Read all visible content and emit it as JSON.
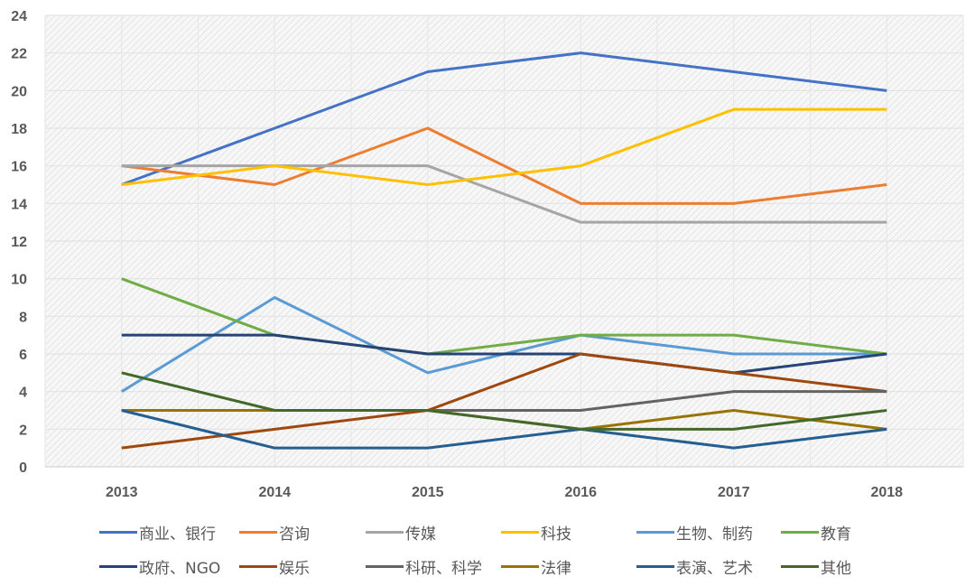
{
  "chart_data": {
    "type": "line",
    "title": "",
    "xlabel": "",
    "ylabel": "",
    "categories": [
      "2013",
      "2014",
      "2015",
      "2016",
      "2017",
      "2018"
    ],
    "ylim": [
      0,
      24
    ],
    "yticks": [
      "0",
      "2",
      "4",
      "6",
      "8",
      "10",
      "12",
      "14",
      "16",
      "18",
      "20",
      "22",
      "24"
    ],
    "grid": true,
    "legend_position": "bottom",
    "series": [
      {
        "name": "商业、银行",
        "color": "#4472C4",
        "values": [
          15,
          18,
          21,
          22,
          21,
          20
        ]
      },
      {
        "name": "咨询",
        "color": "#ED7D31",
        "values": [
          16,
          15,
          18,
          14,
          14,
          15
        ]
      },
      {
        "name": "传媒",
        "color": "#A5A5A5",
        "values": [
          16,
          16,
          16,
          13,
          13,
          13
        ]
      },
      {
        "name": "科技",
        "color": "#FFC000",
        "values": [
          15,
          16,
          15,
          16,
          19,
          19
        ]
      },
      {
        "name": "生物、制药",
        "color": "#5B9BD5",
        "values": [
          4,
          9,
          5,
          7,
          6,
          6
        ]
      },
      {
        "name": "教育",
        "color": "#70AD47",
        "values": [
          10,
          7,
          6,
          7,
          7,
          6
        ]
      },
      {
        "name": "政府、NGO",
        "color": "#264478",
        "values": [
          7,
          7,
          6,
          6,
          5,
          6
        ]
      },
      {
        "name": "娱乐",
        "color": "#9E480E",
        "values": [
          1,
          2,
          3,
          6,
          5,
          4
        ]
      },
      {
        "name": "科研、科学",
        "color": "#636363",
        "values": [
          3,
          3,
          3,
          3,
          4,
          4
        ]
      },
      {
        "name": "法律",
        "color": "#997300",
        "values": [
          3,
          3,
          3,
          2,
          3,
          2
        ]
      },
      {
        "name": "表演、艺术",
        "color": "#255E91",
        "values": [
          3,
          1,
          1,
          2,
          1,
          2
        ]
      },
      {
        "name": "其他",
        "color": "#43682B",
        "values": [
          5,
          3,
          3,
          2,
          2,
          3
        ]
      }
    ]
  }
}
